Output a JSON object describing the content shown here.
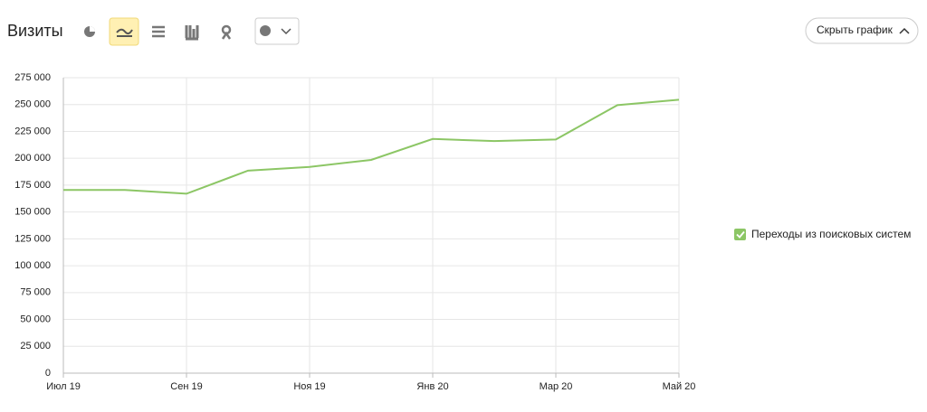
{
  "header": {
    "title": "Визиты",
    "hide_chart_button": "Скрыть график"
  },
  "chart_data": {
    "type": "line",
    "categories": [
      "Июл 19",
      null,
      "Сен 19",
      null,
      "Ноя 19",
      null,
      "Янв 20",
      null,
      "Мар 20",
      null,
      "Май 20"
    ],
    "series": [
      {
        "name": "Переходы из поисковых систем",
        "color": "#8cc665",
        "values": [
          170500,
          170500,
          167000,
          188500,
          192000,
          198500,
          218000,
          216000,
          217500,
          249500,
          254500
        ]
      }
    ],
    "ylim": [
      0,
      275000
    ],
    "yticks": [
      0,
      {
        "value": 25000,
        "label": "25 000"
      },
      {
        "value": 50000,
        "label": "50 000"
      },
      {
        "value": 75000,
        "label": "75 000"
      },
      {
        "value": 100000,
        "label": "100 000"
      },
      {
        "value": 125000,
        "label": "125 000"
      },
      {
        "value": 150000,
        "label": "150 000"
      },
      {
        "value": 175000,
        "label": "175 000"
      },
      {
        "value": 200000,
        "label": "200 000"
      },
      {
        "value": 225000,
        "label": "225 000"
      },
      {
        "value": 250000,
        "label": "250 000"
      },
      {
        "value": 275000,
        "label": "275 000"
      }
    ],
    "grid": true
  }
}
